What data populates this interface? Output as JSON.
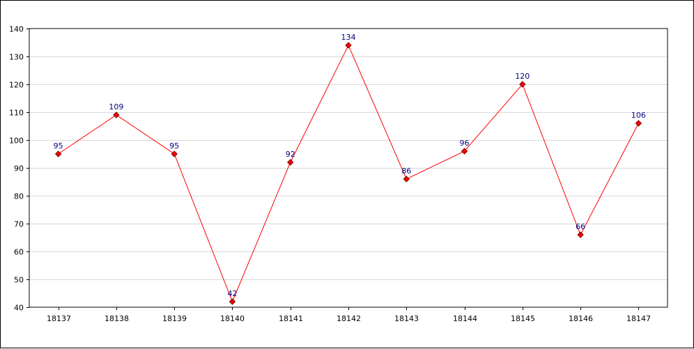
{
  "chart_data": {
    "type": "line",
    "title": "",
    "xlabel": "",
    "ylabel": "",
    "categories": [
      "18137",
      "18138",
      "18139",
      "18140",
      "18141",
      "18142",
      "18143",
      "18144",
      "18145",
      "18146",
      "18147"
    ],
    "series": [
      {
        "values": [
          95,
          109,
          95,
          42,
          92,
          134,
          86,
          96,
          120,
          66,
          106
        ]
      }
    ],
    "ylim": [
      40,
      140
    ],
    "yticks": [
      40,
      50,
      60,
      70,
      80,
      90,
      100,
      110,
      120,
      130,
      140
    ],
    "grid": "horizontal",
    "legend": "none",
    "data_labels": true,
    "colors": {
      "line": "#ff0000",
      "marker_fill": "#ff0000",
      "marker_stroke": "#800000",
      "data_label": "#000080",
      "grid": "#d8d8d8",
      "axis": "#000000"
    }
  }
}
